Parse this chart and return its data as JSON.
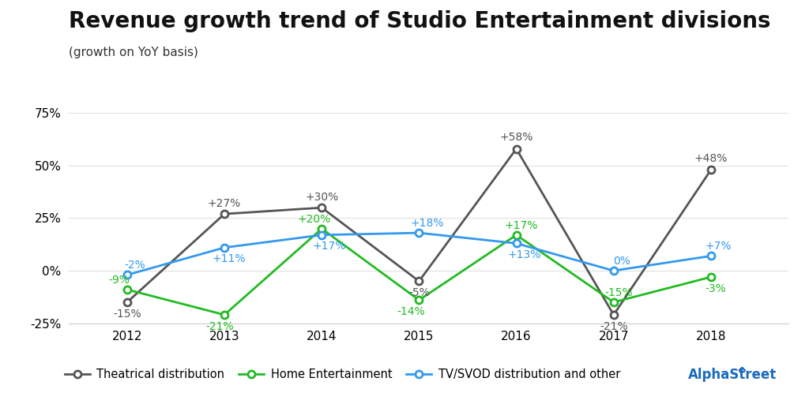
{
  "title": "Revenue growth trend of Studio Entertainment divisions",
  "subtitle": "(growth on YoY basis)",
  "years": [
    2012,
    2013,
    2014,
    2015,
    2016,
    2017,
    2018
  ],
  "theatrical": [
    -15,
    27,
    30,
    -5,
    58,
    -21,
    48
  ],
  "home_entertainment": [
    -9,
    -21,
    20,
    -14,
    17,
    -15,
    -3
  ],
  "tv_svod": [
    -2,
    11,
    17,
    18,
    13,
    0,
    7
  ],
  "theatrical_labels": [
    "-15%",
    "+27%",
    "+30%",
    "-5%",
    "+58%",
    "-21%",
    "+48%"
  ],
  "home_labels": [
    "-9%",
    "-21%",
    "+20%",
    "-14%",
    "+17%",
    "-15%",
    "-3%"
  ],
  "tv_labels": [
    "-2%",
    "+11%",
    "+17%",
    "+18%",
    "+13%",
    "0%",
    "+7%"
  ],
  "theatrical_color": "#555555",
  "home_color": "#22bb22",
  "tv_color": "#3399ee",
  "ylim": [
    -25,
    75
  ],
  "yticks": [
    -25,
    0,
    25,
    50,
    75
  ],
  "background_color": "#ffffff",
  "legend_labels": [
    "Theatrical distribution",
    "Home Entertainment",
    "TV/SVOD distribution and other"
  ],
  "alphastreet_color": "#1a6abf",
  "title_fontsize": 20,
  "subtitle_fontsize": 11,
  "label_fontsize": 10,
  "tick_fontsize": 11,
  "legend_fontsize": 10.5
}
